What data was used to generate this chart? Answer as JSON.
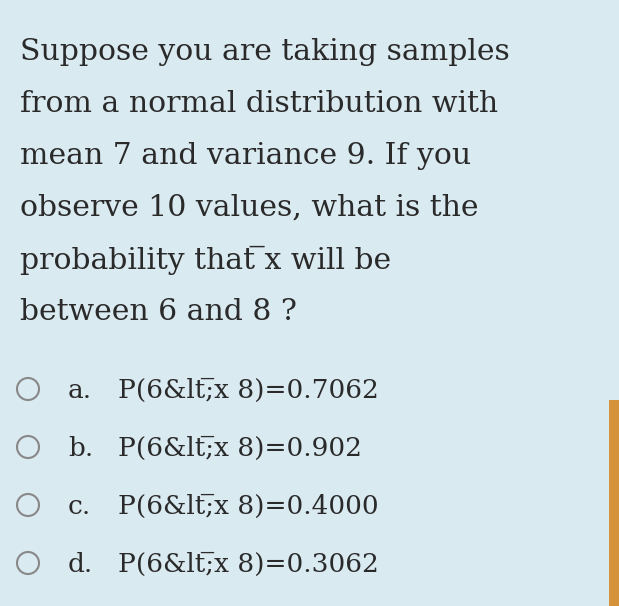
{
  "background_color": "#daeaf1",
  "right_border_color": "#d4933a",
  "question_lines": [
    "Suppose you are taking samples",
    "from a normal distribution with",
    "mean 7 and variance 9. If you",
    "observe 10 values, what is the",
    "probability that ̅x will be",
    "between 6 and 8 ?"
  ],
  "options": [
    {
      "label": "a.",
      "text": "P(6&lt;̅x 8)=0.7062"
    },
    {
      "label": "b.",
      "text": "P(6&lt;̅x 8)=0.902"
    },
    {
      "label": "c.",
      "text": "P(6&lt;̅x 8)=0.4000"
    },
    {
      "label": "d.",
      "text": "P(6&lt;̅x 8)=0.3062"
    }
  ],
  "question_fontsize": 21.5,
  "option_fontsize": 19,
  "text_color": "#2a2a2a",
  "figsize": [
    6.19,
    6.06
  ],
  "dpi": 100
}
